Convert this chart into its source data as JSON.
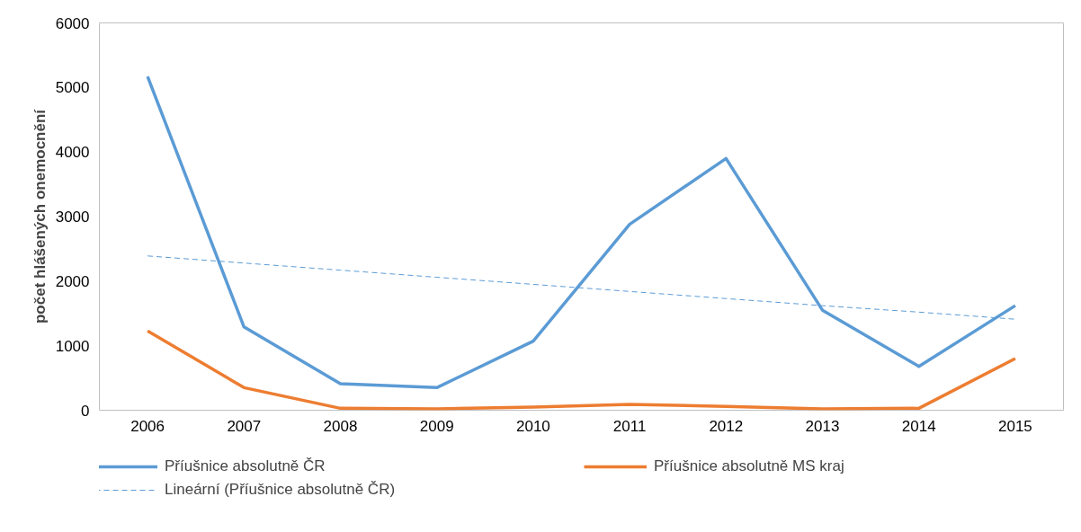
{
  "chart_data": {
    "type": "line",
    "ylabel": "počet hlášených onemocnění",
    "categories": [
      "2006",
      "2007",
      "2008",
      "2009",
      "2010",
      "2011",
      "2012",
      "2013",
      "2014",
      "2015"
    ],
    "series": [
      {
        "name": "Příušnice absolutně ČR",
        "color": "#5b9bd5",
        "values": [
          5170,
          1290,
          410,
          350,
          1070,
          2880,
          3900,
          1550,
          680,
          1620
        ]
      },
      {
        "name": "Příušnice absolutně MS kraj",
        "color": "#ed7d31",
        "values": [
          1230,
          350,
          30,
          20,
          50,
          90,
          60,
          20,
          30,
          800
        ]
      },
      {
        "name": "Lineární (Příušnice absolutně ČR)",
        "color": "#5b9bd5",
        "line_style": "dashed",
        "values": [
          2390,
          2280,
          2170,
          2060,
          1950,
          1840,
          1730,
          1620,
          1520,
          1410
        ]
      }
    ],
    "ylim": [
      0,
      6000
    ],
    "yticks": [
      0,
      1000,
      2000,
      3000,
      4000,
      5000,
      6000
    ],
    "grid": false,
    "legend": "bottom"
  }
}
